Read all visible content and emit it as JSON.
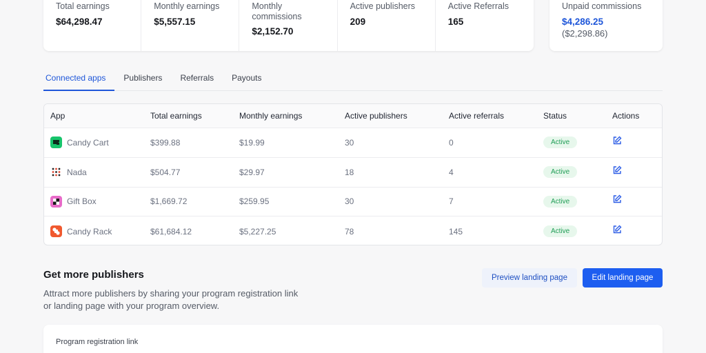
{
  "stats": [
    {
      "label": "Total earnings",
      "value": "$64,298.47"
    },
    {
      "label": "Monthly earnings",
      "value": "$5,557.15"
    },
    {
      "label": "Monthly commissions",
      "value": "$2,152.70"
    },
    {
      "label": "Active publishers",
      "value": "209"
    },
    {
      "label": "Active Referrals",
      "value": "165"
    }
  ],
  "unpaid": {
    "label": "Unpaid commissions",
    "value": "$4,286.25",
    "sub": "($2,298.86)"
  },
  "tabs": [
    "Connected apps",
    "Publishers",
    "Referrals",
    "Payouts"
  ],
  "table": {
    "headers": [
      "App",
      "Total earnings",
      "Monthly earnings",
      "Active publishers",
      "Active referrals",
      "Status",
      "Actions"
    ],
    "rows": [
      {
        "app": "Candy Cart",
        "icon": "candy-cart-icon",
        "total": "$399.88",
        "monthly": "$19.99",
        "publishers": "30",
        "referrals": "0",
        "status": "Active"
      },
      {
        "app": "Nada",
        "icon": "nada-icon",
        "total": "$504.77",
        "monthly": "$29.97",
        "publishers": "18",
        "referrals": "4",
        "status": "Active"
      },
      {
        "app": "Gift Box",
        "icon": "gift-box-icon",
        "total": "$1,669.72",
        "monthly": "$259.95",
        "publishers": "30",
        "referrals": "7",
        "status": "Active"
      },
      {
        "app": "Candy Rack",
        "icon": "candy-rack-icon",
        "total": "$61,684.12",
        "monthly": "$5,227.25",
        "publishers": "78",
        "referrals": "145",
        "status": "Active"
      }
    ]
  },
  "more": {
    "title": "Get more publishers",
    "description": "Attract more publishers by sharing your program registration link or landing page with your program overview.",
    "preview_label": "Preview landing page",
    "edit_label": "Edit landing page",
    "reg_link_label": "Program registration link"
  },
  "colors": {
    "accent": "#1e56d9",
    "primary_button": "#1d5ef0",
    "active_badge_bg": "#e7f7ec",
    "active_badge_text": "#1f9d55"
  }
}
